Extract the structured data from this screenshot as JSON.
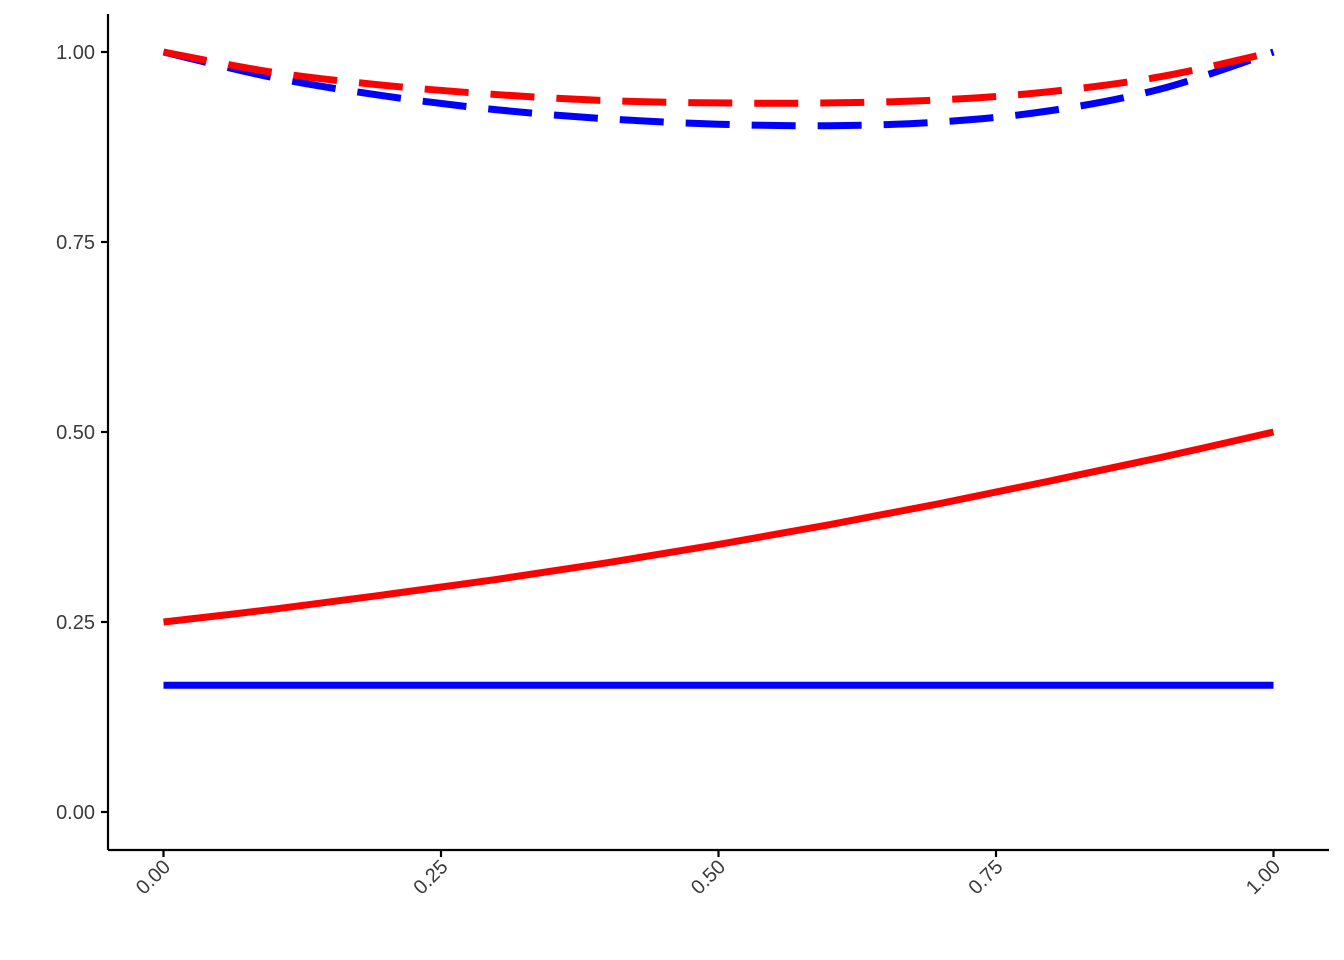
{
  "chart_data": {
    "type": "line",
    "title": "",
    "xlabel": "",
    "ylabel": "",
    "xlim": [
      -0.05,
      1.05
    ],
    "ylim": [
      -0.05,
      1.05
    ],
    "grid": false,
    "x_ticks": [
      {
        "value": 0,
        "label": "0.00"
      },
      {
        "value": 0.25,
        "label": "0.25"
      },
      {
        "value": 0.5,
        "label": "0.50"
      },
      {
        "value": 0.75,
        "label": "0.75"
      },
      {
        "value": 1,
        "label": "1.00"
      }
    ],
    "y_ticks": [
      {
        "value": 0,
        "label": "0.00"
      },
      {
        "value": 0.25,
        "label": "0.25"
      },
      {
        "value": 0.5,
        "label": "0.50"
      },
      {
        "value": 0.75,
        "label": "0.75"
      },
      {
        "value": 1,
        "label": "1.00"
      }
    ],
    "x": [
      0,
      0.1,
      0.2,
      0.3,
      0.4,
      0.5,
      0.6,
      0.7,
      0.8,
      0.9,
      1.0
    ],
    "series": [
      {
        "color": "#0000ff",
        "dash": "dashed",
        "values": [
          1.0,
          0.966,
          0.942,
          0.924,
          0.912,
          0.905,
          0.903,
          0.908,
          0.923,
          0.952,
          1.0
        ]
      },
      {
        "color": "#ff0000",
        "dash": "dashed",
        "values": [
          1.0,
          0.973,
          0.956,
          0.944,
          0.936,
          0.933,
          0.933,
          0.937,
          0.948,
          0.968,
          1.0
        ]
      },
      {
        "color": "#ff0000",
        "dash": "solid",
        "values": [
          0.25,
          0.267,
          0.286,
          0.306,
          0.328,
          0.352,
          0.378,
          0.406,
          0.436,
          0.467,
          0.5
        ]
      },
      {
        "color": "#0000ff",
        "dash": "solid",
        "values": [
          0.1667,
          0.1667,
          0.1667,
          0.1667,
          0.1667,
          0.1667,
          0.1667,
          0.1667,
          0.1667,
          0.1667,
          0.1667
        ]
      }
    ]
  }
}
